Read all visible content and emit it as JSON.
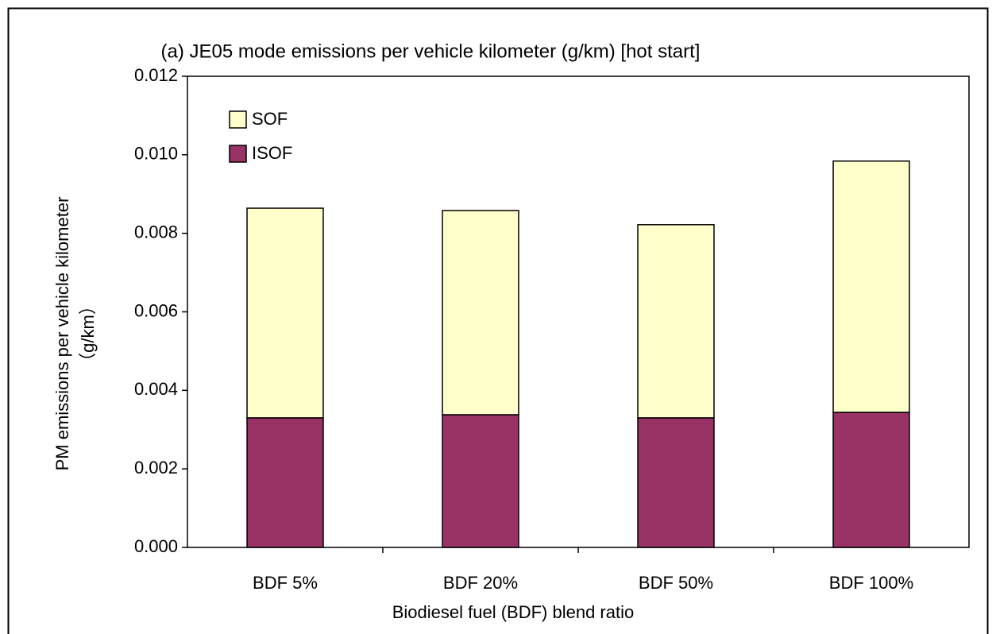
{
  "chart_data": {
    "type": "stacked-bar",
    "title": "(a) JE05 mode emissions per vehicle kilometer (g/km) [hot start]",
    "xlabel": "Biodiesel fuel (BDF) blend ratio",
    "ylabel": "PM emissions per vehicle kilometer",
    "ylabel_unit": "（g/km）",
    "categories": [
      "BDF 5%",
      "BDF 20%",
      "BDF 50%",
      "BDF 100%"
    ],
    "series": [
      {
        "name": "ISOF",
        "color": "#993366",
        "values": [
          0.0033,
          0.00338,
          0.0033,
          0.00344
        ]
      },
      {
        "name": "SOF",
        "color": "#FFFFCC",
        "values": [
          0.00534,
          0.0052,
          0.00492,
          0.0064
        ]
      }
    ],
    "ylim": [
      0,
      0.012
    ],
    "yticks": [
      {
        "value": 0,
        "label": "0.000"
      },
      {
        "value": 0.002,
        "label": "0.002"
      },
      {
        "value": 0.004,
        "label": "0.004"
      },
      {
        "value": 0.006,
        "label": "0.006"
      },
      {
        "value": 0.008,
        "label": "0.008"
      },
      {
        "value": 0.01,
        "label": "0.010"
      },
      {
        "value": 0.012,
        "label": "0.012"
      }
    ],
    "legend": "top-left"
  }
}
